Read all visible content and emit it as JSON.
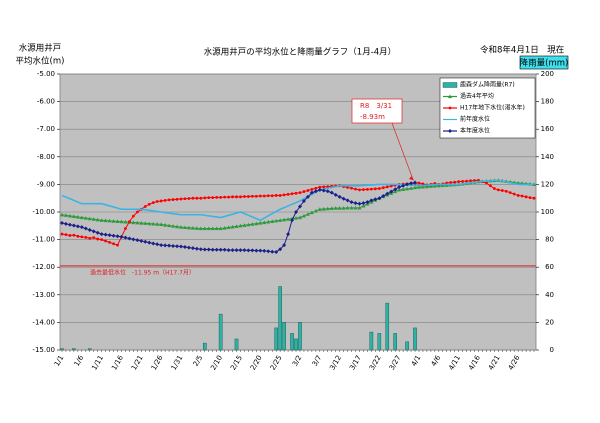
{
  "chart_data": {
    "type": "combo",
    "title": "水源用井戸の平均水位と降雨量グラフ（1月-4月）",
    "date_label": "令和8年4月1日　現在",
    "y_label": [
      "水源用井戸",
      "平均水位(m)"
    ],
    "y2_label": "降雨量(mm)",
    "categories": [
      "1/1",
      null,
      null,
      null,
      null,
      "1/6",
      null,
      null,
      null,
      null,
      "1/11",
      null,
      null,
      null,
      null,
      "1/16",
      null,
      null,
      null,
      null,
      "1/21",
      null,
      null,
      null,
      null,
      "1/26",
      null,
      null,
      null,
      null,
      "1/31",
      null,
      null,
      null,
      null,
      "2/5",
      null,
      null,
      null,
      null,
      "2/10",
      null,
      null,
      null,
      null,
      "2/15",
      null,
      null,
      null,
      null,
      "2/20",
      null,
      null,
      null,
      null,
      "2/25",
      null,
      null,
      null,
      null,
      "3/2",
      null,
      null,
      null,
      null,
      "3/7",
      null,
      null,
      null,
      null,
      "3/12",
      null,
      null,
      null,
      null,
      "3/17",
      null,
      null,
      null,
      null,
      "3/22",
      null,
      null,
      null,
      null,
      "3/27",
      null,
      null,
      null,
      null,
      "4/1",
      null,
      null,
      null,
      null,
      "4/6",
      null,
      null,
      null,
      null,
      "4/11",
      null,
      null,
      null,
      null,
      "4/16",
      null,
      null,
      null,
      null,
      "4/21",
      null,
      null,
      null,
      null,
      "4/26",
      null,
      null,
      null,
      null
    ],
    "ylim": [
      -15,
      -5
    ],
    "yticks": [
      {
        "value": -15,
        "label": "-15.00"
      },
      {
        "value": -14,
        "label": "-14.00"
      },
      {
        "value": -13,
        "label": "-13.00"
      },
      {
        "value": -12,
        "label": "-12.00"
      },
      {
        "value": -11,
        "label": "-11.00"
      },
      {
        "value": -10,
        "label": "-10.00"
      },
      {
        "value": -9,
        "label": "-9.00"
      },
      {
        "value": -8,
        "label": "-8.00"
      },
      {
        "value": -7,
        "label": "-7.00"
      },
      {
        "value": -6,
        "label": "-6.00"
      },
      {
        "value": -5,
        "label": "-5.00"
      }
    ],
    "y2lim": [
      0,
      200
    ],
    "y2ticks": [
      0,
      20,
      40,
      60,
      80,
      100,
      120,
      140,
      160,
      180,
      200
    ],
    "grid": true,
    "legend": "top-right",
    "series": [
      {
        "name": "鹿森ダム降雨量(R7)",
        "type": "bar",
        "axis": "y2",
        "color": "#2bb3a8",
        "values": [
          1,
          0,
          0,
          1,
          0,
          0,
          0,
          1,
          0,
          0,
          0,
          0,
          0,
          0,
          0,
          0,
          0,
          0,
          0,
          0,
          0,
          0,
          0,
          0,
          0,
          0,
          0,
          0,
          0,
          0,
          0,
          0,
          0,
          0,
          0,
          0,
          5,
          0,
          0,
          0,
          26,
          0,
          0,
          0,
          8,
          0,
          0,
          0,
          0,
          0,
          0,
          0,
          0,
          0,
          16,
          46,
          20,
          0,
          12,
          8,
          20,
          0,
          0,
          0,
          0,
          0,
          0,
          0,
          0,
          0,
          0,
          0,
          0,
          0,
          0,
          0,
          0,
          0,
          13,
          0,
          12,
          0,
          34,
          0,
          12,
          0,
          0,
          6,
          0,
          16,
          null,
          null,
          null,
          null,
          null,
          null,
          null,
          null,
          null,
          null,
          null,
          null,
          null,
          null,
          null,
          null,
          null,
          null,
          null,
          null,
          null,
          null,
          null,
          null,
          null,
          null,
          null,
          null,
          null,
          null
        ]
      },
      {
        "name": "過去4年平均",
        "type": "line",
        "marker": "triangle",
        "color": "#2e9a3e",
        "values": [
          -10.1,
          -10.12,
          -10.14,
          -10.16,
          -10.18,
          -10.2,
          -10.22,
          -10.24,
          -10.26,
          -10.28,
          -10.3,
          -10.31,
          -10.32,
          -10.33,
          -10.34,
          -10.35,
          -10.36,
          -10.37,
          -10.38,
          -10.39,
          -10.4,
          -10.41,
          -10.42,
          -10.43,
          -10.44,
          -10.45,
          -10.47,
          -10.49,
          -10.51,
          -10.53,
          -10.55,
          -10.56,
          -10.57,
          -10.58,
          -10.59,
          -10.6,
          -10.6,
          -10.6,
          -10.6,
          -10.6,
          -10.6,
          -10.58,
          -10.56,
          -10.54,
          -10.52,
          -10.5,
          -10.48,
          -10.46,
          -10.44,
          -10.42,
          -10.4,
          -10.38,
          -10.36,
          -10.34,
          -10.32,
          -10.3,
          -10.28,
          -10.26,
          -10.24,
          -10.22,
          -10.2,
          -10.14,
          -10.08,
          -10.02,
          -9.96,
          -9.9,
          -9.89,
          -9.88,
          -9.87,
          -9.86,
          -9.86,
          -9.86,
          -9.85,
          -9.85,
          -9.85,
          -9.85,
          -9.78,
          -9.71,
          -9.64,
          -9.57,
          -9.5,
          -9.44,
          -9.38,
          -9.32,
          -9.26,
          -9.2,
          -9.18,
          -9.16,
          -9.14,
          -9.12,
          -9.1,
          -9.09,
          -9.08,
          -9.07,
          -9.06,
          -9.05,
          -9.04,
          -9.03,
          -9.02,
          -9.01,
          -9.0,
          -8.98,
          -8.96,
          -8.94,
          -8.92,
          -8.9,
          -8.89,
          -8.88,
          -8.87,
          -8.86,
          -8.85,
          -8.87,
          -8.89,
          -8.91,
          -8.93,
          -8.95,
          -8.96,
          -8.97,
          -8.98,
          -9.0
        ]
      },
      {
        "name": "H17年地下水位(渇水年)",
        "type": "line",
        "marker": "circle",
        "color": "#ff0000",
        "values": [
          -10.8,
          -10.82,
          -10.85,
          -10.84,
          -10.88,
          -10.9,
          -10.92,
          -10.95,
          -10.93,
          -10.98,
          -11.0,
          -11.05,
          -11.1,
          -11.15,
          -11.2,
          -10.9,
          -10.6,
          -10.35,
          -10.15,
          -10.0,
          -9.9,
          -9.8,
          -9.72,
          -9.66,
          -9.62,
          -9.6,
          -9.58,
          -9.56,
          -9.55,
          -9.54,
          -9.53,
          -9.52,
          -9.51,
          -9.5,
          -9.5,
          -9.5,
          -9.49,
          -9.48,
          -9.48,
          -9.47,
          -9.47,
          -9.46,
          -9.46,
          -9.45,
          -9.45,
          -9.45,
          -9.44,
          -9.44,
          -9.43,
          -9.43,
          -9.42,
          -9.42,
          -9.41,
          -9.41,
          -9.4,
          -9.4,
          -9.38,
          -9.36,
          -9.34,
          -9.32,
          -9.3,
          -9.26,
          -9.22,
          -9.18,
          -9.14,
          -9.1,
          -9.09,
          -9.08,
          -9.07,
          -9.06,
          -9.05,
          -9.08,
          -9.11,
          -9.14,
          -9.17,
          -9.2,
          -9.19,
          -9.18,
          -9.17,
          -9.16,
          -9.15,
          -9.12,
          -9.09,
          -9.06,
          -9.03,
          -9.0,
          -8.99,
          -8.98,
          -8.97,
          -8.96,
          -8.95,
          -8.98,
          -9.02,
          -9.0,
          -8.97,
          -9.0,
          -8.98,
          -8.95,
          -8.93,
          -8.92,
          -8.9,
          -8.89,
          -8.88,
          -8.87,
          -8.86,
          -8.85,
          -8.9,
          -8.95,
          -9.05,
          -9.15,
          -9.2,
          -9.22,
          -9.25,
          -9.3,
          -9.35,
          -9.4,
          -9.42,
          -9.45,
          -9.48,
          -9.5
        ]
      },
      {
        "name": "前年度水位",
        "type": "line",
        "marker": "none",
        "color": "#3db3e3",
        "values": [
          -9.4,
          -9.46,
          -9.52,
          -9.58,
          -9.64,
          -9.7,
          -9.7,
          -9.7,
          -9.7,
          -9.7,
          -9.7,
          -9.74,
          -9.78,
          -9.82,
          -9.86,
          -9.9,
          -9.9,
          -9.9,
          -9.9,
          -9.9,
          -9.9,
          -9.92,
          -9.94,
          -9.96,
          -9.98,
          -10.0,
          -10.02,
          -10.04,
          -10.06,
          -10.08,
          -10.1,
          -10.1,
          -10.1,
          -10.1,
          -10.1,
          -10.1,
          -10.12,
          -10.14,
          -10.16,
          -10.18,
          -10.2,
          -10.16,
          -10.12,
          -10.08,
          -10.04,
          -10.0,
          -10.06,
          -10.12,
          -10.18,
          -10.24,
          -10.3,
          -10.22,
          -10.14,
          -10.06,
          -9.98,
          -9.9,
          -9.84,
          -9.78,
          -9.72,
          -9.66,
          -9.6,
          -9.52,
          -9.44,
          -9.36,
          -9.28,
          -9.2,
          -9.17,
          -9.14,
          -9.11,
          -9.08,
          -9.05,
          -9.05,
          -9.05,
          -9.05,
          -9.05,
          -9.05,
          -9.04,
          -9.03,
          -9.02,
          -9.01,
          -9.0,
          -9.0,
          -9.0,
          -9.0,
          -9.0,
          -9.0,
          -9.01,
          -9.02,
          -9.03,
          -9.04,
          -9.05,
          -9.04,
          -9.03,
          -9.02,
          -9.01,
          -9.0,
          -9.0,
          -9.0,
          -9.0,
          -9.0,
          -9.0,
          -8.98,
          -8.96,
          -8.94,
          -8.92,
          -8.9,
          -8.89,
          -8.88,
          -8.87,
          -8.86,
          -8.85,
          -8.88,
          -8.91,
          -8.94,
          -8.97,
          -9.0,
          -9.0,
          -9.0,
          -9.0,
          -9.0
        ]
      },
      {
        "name": "本年度水位",
        "type": "line",
        "marker": "diamond",
        "color": "#1b1f8a",
        "values": [
          -10.4,
          -10.43,
          -10.46,
          -10.49,
          -10.52,
          -10.55,
          -10.6,
          -10.65,
          -10.7,
          -10.75,
          -10.8,
          -10.82,
          -10.84,
          -10.86,
          -10.88,
          -10.9,
          -10.93,
          -10.96,
          -10.99,
          -11.02,
          -11.05,
          -11.08,
          -11.11,
          -11.14,
          -11.17,
          -11.2,
          -11.21,
          -11.22,
          -11.23,
          -11.24,
          -11.25,
          -11.27,
          -11.29,
          -11.31,
          -11.33,
          -11.35,
          -11.36,
          -11.36,
          -11.37,
          -11.37,
          -11.37,
          -11.37,
          -11.38,
          -11.38,
          -11.38,
          -11.38,
          -11.38,
          -11.39,
          -11.39,
          -11.4,
          -11.4,
          -11.41,
          -11.42,
          -11.44,
          -11.45,
          -11.35,
          -11.2,
          -10.8,
          -10.3,
          -10.0,
          -9.8,
          -9.6,
          -9.45,
          -9.3,
          -9.25,
          -9.2,
          -9.22,
          -9.25,
          -9.3,
          -9.38,
          -9.45,
          -9.52,
          -9.58,
          -9.64,
          -9.68,
          -9.7,
          -9.68,
          -9.64,
          -9.58,
          -9.54,
          -9.5,
          -9.42,
          -9.34,
          -9.26,
          -9.18,
          -9.1,
          -9.05,
          -9.0,
          -8.96,
          -8.93,
          null,
          null,
          null,
          null,
          null,
          null,
          null,
          null,
          null,
          null,
          null,
          null,
          null,
          null,
          null,
          null,
          null,
          null,
          null,
          null,
          null,
          null,
          null,
          null,
          null,
          null,
          null,
          null,
          null,
          null
        ]
      }
    ],
    "reference_line": {
      "value": -11.95,
      "label": "過去最低水位　-11.95 m（H17.7月）",
      "color": "#e02020"
    },
    "annotation": {
      "series": 4,
      "index": 89,
      "lines": [
        "R8　3/31",
        "-8.93m"
      ]
    }
  }
}
